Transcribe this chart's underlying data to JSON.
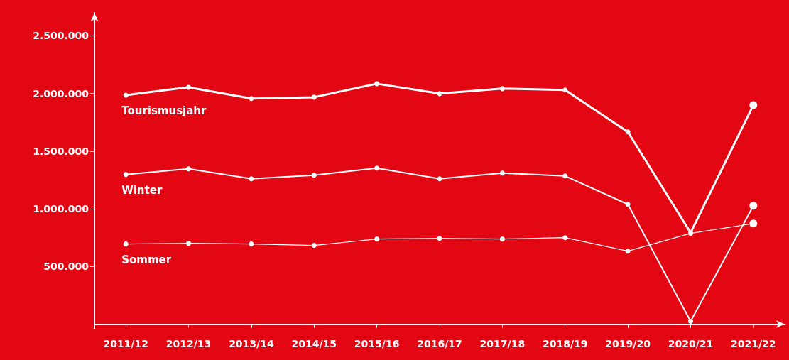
{
  "chart_data": {
    "type": "line",
    "categories": [
      "2011/12",
      "2012/13",
      "2013/14",
      "2014/15",
      "2015/16",
      "2016/17",
      "2017/18",
      "2018/19",
      "2019/20",
      "2020/21",
      "2021/22"
    ],
    "series": [
      {
        "name": "Tourismusjahr",
        "color": "#ffffff",
        "values": [
          1986000,
          2054000,
          1956000,
          1968000,
          2085000,
          1999000,
          2042000,
          2030000,
          1667000,
          793000,
          1900000
        ]
      },
      {
        "name": "Winter",
        "color": "#ffffff",
        "values": [
          1298000,
          1347000,
          1261000,
          1292000,
          1353000,
          1261000,
          1310000,
          1285000,
          1039000,
          25000,
          1027000
        ]
      },
      {
        "name": "Sommer",
        "color": "#ffffff",
        "values": [
          695000,
          701000,
          695000,
          683000,
          738000,
          744000,
          738000,
          750000,
          633000,
          787000,
          873000
        ]
      }
    ],
    "ylim": [
      -40000,
      2700000
    ],
    "yticks": [
      {
        "value": 500000,
        "label": "500.000"
      },
      {
        "value": 1000000,
        "label": "1.000.000"
      },
      {
        "value": 1500000,
        "label": "1.500.000"
      },
      {
        "value": 2000000,
        "label": "2.000.000"
      },
      {
        "value": 2500000,
        "label": "2.500.000"
      }
    ],
    "grid": false,
    "legend": false,
    "marker": "circle",
    "line_style": "solid"
  }
}
